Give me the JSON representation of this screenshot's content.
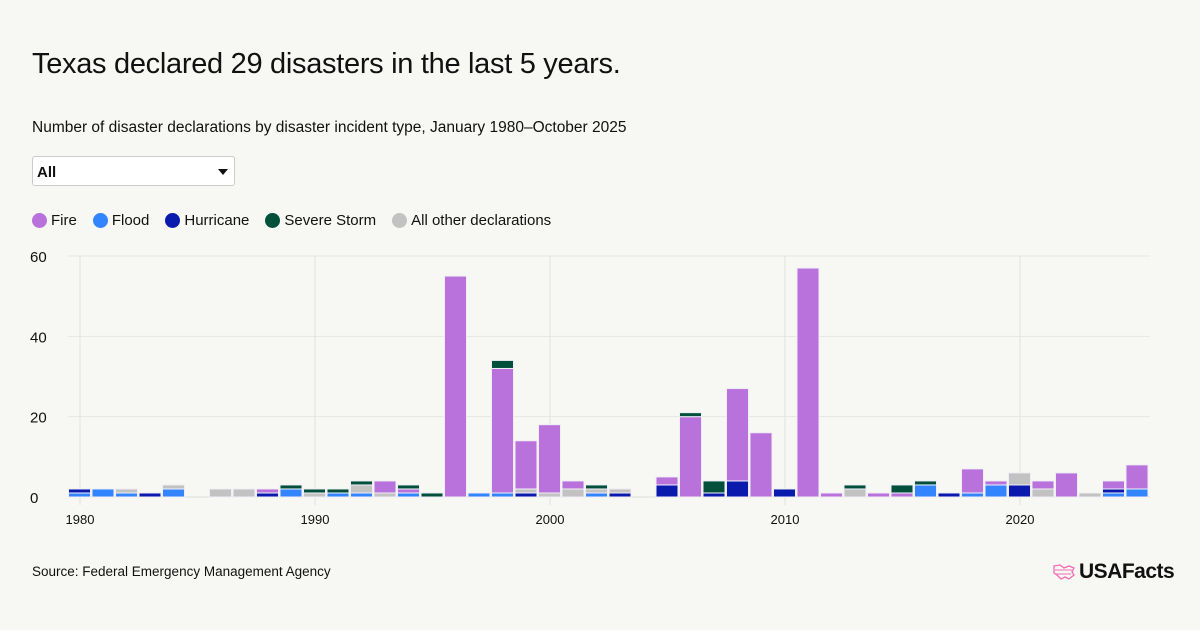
{
  "title": "Texas declared 29 disasters in the last 5 years.",
  "subtitle": "Number of disaster declarations by disaster incident type, January 1980–October 2025",
  "filter": {
    "selected": "All"
  },
  "source": "Source: Federal Emergency Management Agency",
  "logo": "USAFacts",
  "chart_data": {
    "type": "bar",
    "stacked": true,
    "x": [
      1980,
      1981,
      1982,
      1983,
      1984,
      1985,
      1986,
      1987,
      1988,
      1989,
      1990,
      1991,
      1992,
      1993,
      1994,
      1995,
      1996,
      1997,
      1998,
      1999,
      2000,
      2001,
      2002,
      2003,
      2004,
      2005,
      2006,
      2007,
      2008,
      2009,
      2010,
      2011,
      2012,
      2013,
      2014,
      2015,
      2016,
      2017,
      2018,
      2019,
      2020,
      2021,
      2022,
      2023,
      2024,
      2025
    ],
    "series": [
      {
        "name": "Flood",
        "color": "#3385ff",
        "values": [
          1,
          2,
          1,
          0,
          2,
          0,
          0,
          0,
          0,
          2,
          0,
          1,
          1,
          0,
          1,
          0,
          0,
          1,
          1,
          0,
          0,
          0,
          1,
          0,
          0,
          0,
          0,
          0,
          0,
          0,
          0,
          0,
          0,
          0,
          0,
          0,
          3,
          0,
          1,
          3,
          0,
          0,
          0,
          0,
          1,
          2
        ]
      },
      {
        "name": "Hurricane",
        "color": "#0a1aad",
        "values": [
          1,
          0,
          0,
          1,
          0,
          0,
          0,
          0,
          1,
          0,
          0,
          0,
          0,
          0,
          0,
          0,
          0,
          0,
          0,
          1,
          0,
          0,
          0,
          1,
          0,
          3,
          0,
          1,
          4,
          0,
          2,
          0,
          0,
          0,
          0,
          0,
          0,
          1,
          0,
          0,
          3,
          0,
          0,
          0,
          1,
          0
        ]
      },
      {
        "name": "All other declarations",
        "color": "#c2c2c2",
        "values": [
          0,
          0,
          1,
          0,
          1,
          0,
          2,
          2,
          0,
          0,
          1,
          0,
          2,
          1,
          0,
          0,
          0,
          0,
          0,
          1,
          1,
          2,
          1,
          1,
          0,
          0,
          0,
          0,
          0,
          0,
          0,
          0,
          0,
          2,
          0,
          0,
          0,
          0,
          0,
          0,
          3,
          2,
          0,
          1,
          0,
          0
        ]
      },
      {
        "name": "Fire",
        "color": "#b972dc",
        "values": [
          0,
          0,
          0,
          0,
          0,
          0,
          0,
          0,
          1,
          0,
          0,
          0,
          0,
          3,
          1,
          0,
          55,
          0,
          31,
          12,
          17,
          2,
          0,
          0,
          0,
          2,
          20,
          0,
          23,
          16,
          0,
          57,
          1,
          0,
          1,
          1,
          0,
          0,
          6,
          1,
          0,
          2,
          6,
          0,
          2,
          6
        ]
      },
      {
        "name": "Severe Storm",
        "color": "#00503c",
        "values": [
          0,
          0,
          0,
          0,
          0,
          0,
          0,
          0,
          0,
          1,
          1,
          1,
          1,
          0,
          1,
          1,
          0,
          0,
          2,
          0,
          0,
          0,
          1,
          0,
          0,
          0,
          1,
          3,
          0,
          0,
          0,
          0,
          0,
          1,
          0,
          2,
          1,
          0,
          0,
          0,
          0,
          0,
          0,
          0,
          0,
          0
        ]
      }
    ],
    "legend_order": [
      "Fire",
      "Flood",
      "Hurricane",
      "Severe Storm",
      "All other declarations"
    ],
    "ylim": [
      0,
      60
    ],
    "yticks": [
      0,
      20,
      40,
      60
    ],
    "xticks": [
      1980,
      1990,
      2000,
      2010,
      2020
    ],
    "grid": true,
    "legend_placement": "top-left"
  }
}
